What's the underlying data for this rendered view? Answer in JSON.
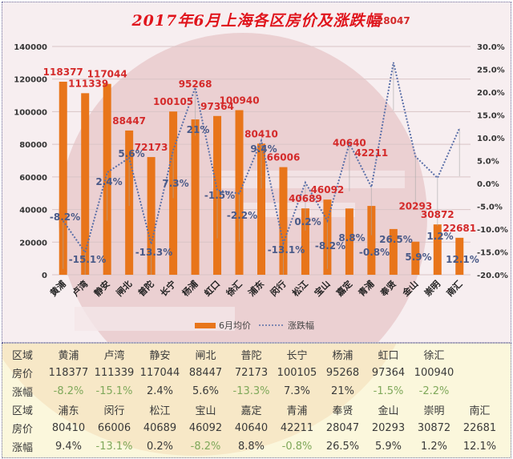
{
  "chart_data": {
    "type": "bar",
    "title": "2017年6月上海各区房价及涨跌幅",
    "categories": [
      "黄浦",
      "卢湾",
      "静安",
      "闸北",
      "普陀",
      "长宁",
      "杨浦",
      "虹口",
      "徐汇",
      "浦东",
      "闵行",
      "松江",
      "宝山",
      "嘉定",
      "青浦",
      "奉贤",
      "金山",
      "崇明",
      "南汇"
    ],
    "series": [
      {
        "name": "6月均价",
        "type": "bar",
        "axis": "left",
        "color": "#e8751a",
        "values": [
          118377,
          111339,
          117044,
          88447,
          72173,
          100105,
          95268,
          97364,
          100940,
          80410,
          66006,
          40689,
          46092,
          40640,
          42211,
          28047,
          20293,
          30872,
          22681
        ]
      },
      {
        "name": "涨跌幅",
        "type": "line",
        "axis": "right",
        "style": "dotted",
        "color": "#5a6fa8",
        "values": [
          -8.2,
          -15.1,
          2.4,
          5.6,
          -13.3,
          7.3,
          21,
          -1.5,
          -2.2,
          9.4,
          -13.1,
          0.2,
          -8.2,
          8.8,
          -0.8,
          26.5,
          5.9,
          1.2,
          12.1
        ],
        "labels": [
          "-8.2%",
          "-15.1%",
          "2.4%",
          "5.6%",
          "-13.3%",
          "7.3%",
          "21%",
          "-1.5%",
          "-2.2%",
          "9.4%",
          "-13.1%",
          "0.2%",
          "-8.2%",
          "8.8%",
          "-0.8%",
          "26.5%",
          "5.9%",
          "1.2%",
          "12.1%"
        ]
      }
    ],
    "xlabel": "",
    "ylabel": "",
    "ylim": [
      0,
      140000
    ],
    "y2lim": [
      -20,
      30
    ],
    "left_ticks": [
      "0",
      "20000",
      "40000",
      "60000",
      "80000",
      "100000",
      "120000",
      "140000"
    ],
    "right_ticks": [
      "-20.0%",
      "-15.0%",
      "-10.0%",
      "-5.0%",
      "0.0%",
      "5.0%",
      "10.0%",
      "15.0%",
      "20.0%",
      "25.0%",
      "30.0%"
    ],
    "grid": true,
    "legend": {
      "position": "bottom",
      "entries": [
        "6月均价",
        "涨跌幅"
      ]
    }
  },
  "legend": {
    "bar_label": "6月均价",
    "line_label": "涨跌幅"
  },
  "table": {
    "row_headers": {
      "district": "区域",
      "price": "房价",
      "change": "涨幅"
    },
    "block1": {
      "districts": [
        "黄浦",
        "卢湾",
        "静安",
        "闸北",
        "普陀",
        "长宁",
        "杨浦",
        "虹口",
        "徐汇"
      ],
      "prices": [
        "118377",
        "111339",
        "117044",
        "88447",
        "72173",
        "100105",
        "95268",
        "97364",
        "100940"
      ],
      "changes": [
        "-8.2%",
        "-15.1%",
        "2.4%",
        "5.6%",
        "-13.3%",
        "7.3%",
        "21%",
        "-1.5%",
        "-2.2%"
      ]
    },
    "block2": {
      "districts": [
        "浦东",
        "闵行",
        "松江",
        "宝山",
        "嘉定",
        "青浦",
        "奉贤",
        "金山",
        "崇明",
        "南汇"
      ],
      "prices": [
        "80410",
        "66006",
        "40689",
        "46092",
        "40640",
        "42211",
        "28047",
        "20293",
        "30872",
        "22681"
      ],
      "changes": [
        "9.4%",
        "-13.1%",
        "0.2%",
        "-8.2%",
        "8.8%",
        "-0.8%",
        "26.5%",
        "5.9%",
        "1.2%",
        "12.1%"
      ]
    }
  },
  "colors": {
    "bar": "#e8751a",
    "line": "#5a6fa8",
    "value_label": "#d42a2a",
    "pct_label": "#4a5a88",
    "title": "#e0141c",
    "negative_table": "#7fa85a"
  }
}
